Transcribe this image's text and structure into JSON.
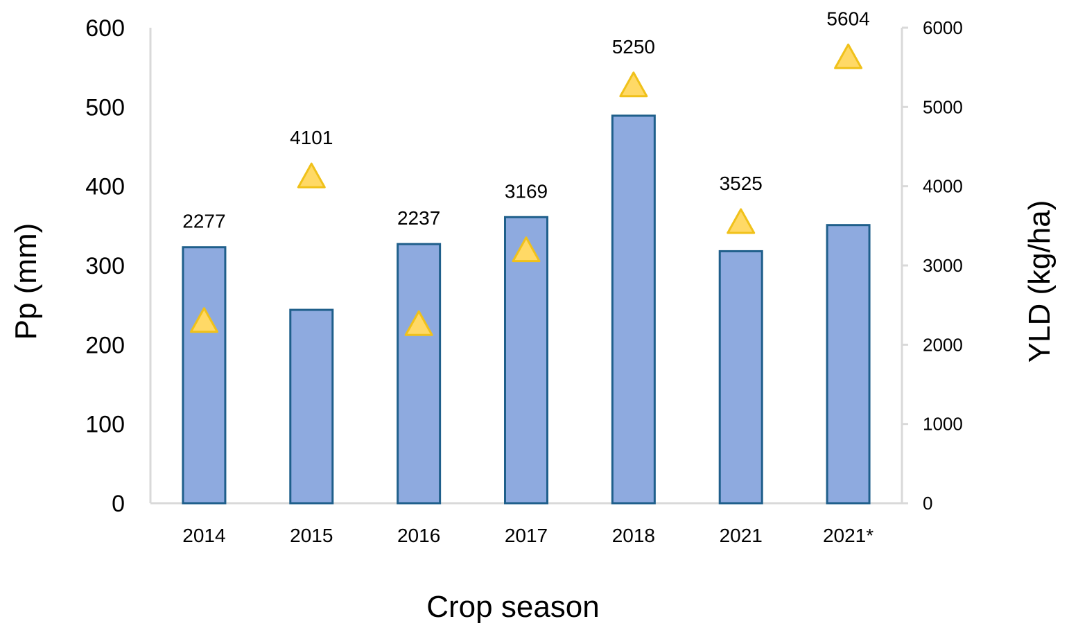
{
  "chart_data": {
    "type": "bar",
    "categories": [
      "2014",
      "2015",
      "2016",
      "2017",
      "2018",
      "2021",
      "2021*"
    ],
    "series": [
      {
        "axis": "left",
        "mark": "bar",
        "values": [
          323,
          244,
          327,
          361,
          489,
          318,
          351
        ],
        "color": "#8eaadf",
        "stroke": "#1f5f8b"
      },
      {
        "axis": "right",
        "mark": "triangle",
        "values": [
          2277,
          4101,
          2237,
          3169,
          5250,
          3525,
          5604
        ],
        "data_labels": [
          "2277",
          "4101",
          "2237",
          "3169",
          "5250",
          "3525",
          "5604"
        ],
        "color": "#ffd966",
        "stroke": "#f0c11a"
      }
    ],
    "xlabel": "Crop season",
    "ylabel": "Pp (mm)",
    "y2label": "YLD (kg/ha)",
    "ylim": [
      0,
      600
    ],
    "y2lim": [
      0,
      6000
    ],
    "yticks": [
      "0",
      "100",
      "200",
      "300",
      "400",
      "500",
      "600"
    ],
    "y2ticks": [
      "0",
      "1000",
      "2000",
      "3000",
      "4000",
      "5000",
      "6000"
    ],
    "grid": false,
    "legend": "none",
    "axis_color": "#d9d9d9"
  }
}
